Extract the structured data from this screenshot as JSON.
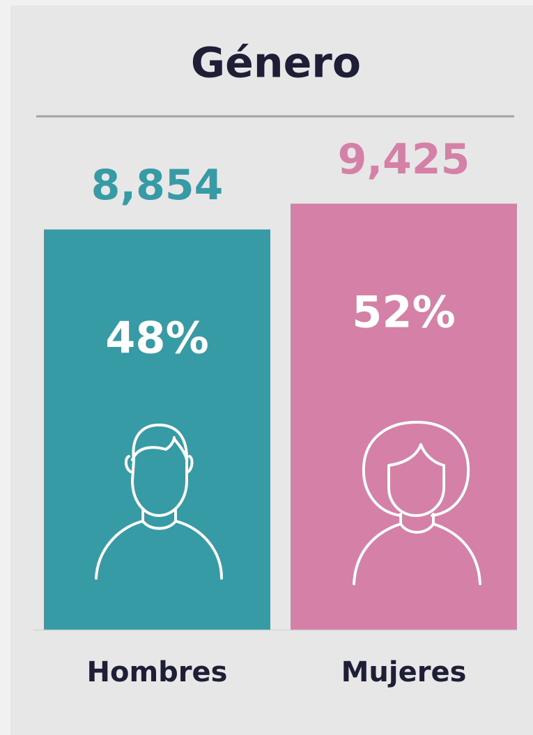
{
  "chart_data": {
    "type": "bar",
    "title": "Género",
    "categories": [
      "Hombres",
      "Mujeres"
    ],
    "values": [
      8854,
      9425
    ],
    "value_labels": [
      "8,854",
      "9,425"
    ],
    "shares": [
      48,
      52
    ],
    "share_labels": [
      "48%",
      "52%"
    ],
    "colors": [
      "#379ba5",
      "#d480a7"
    ],
    "ylim": [
      0,
      10000
    ]
  }
}
